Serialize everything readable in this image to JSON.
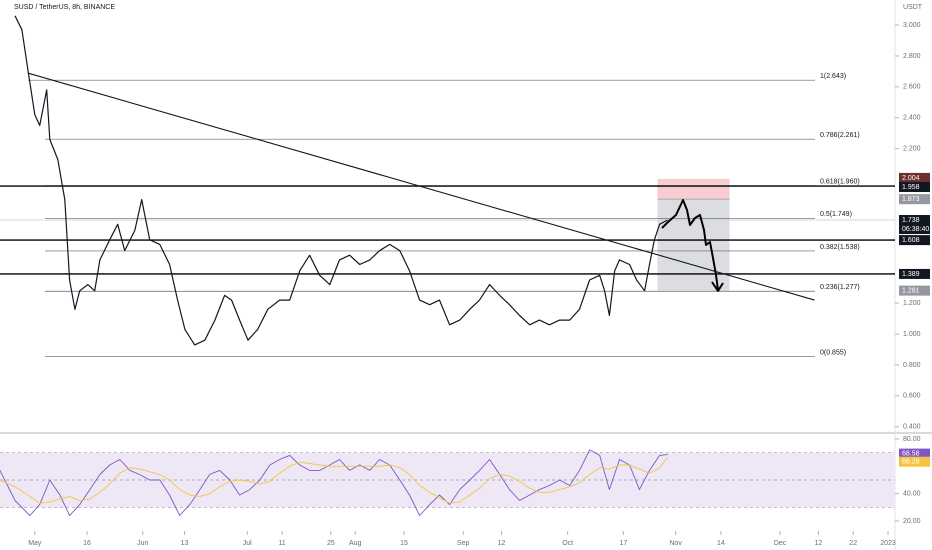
{
  "chart_data": [
    {
      "type": "line",
      "title": "SUSD / TetherUS, 8h, BINANCE",
      "y_unit": "USDT",
      "xlim": [
        -10,
        247
      ],
      "ylim": [
        0.366,
        3.162
      ],
      "xticks": [
        {
          "value": 0,
          "label": "May"
        },
        15,
        {
          "value": 31,
          "label": "Jun"
        },
        43,
        {
          "value": 61,
          "label": "Jul"
        },
        71,
        85,
        {
          "value": 92,
          "label": "Aug"
        },
        106,
        {
          "value": 123,
          "label": "Sep"
        },
        134,
        {
          "value": 153,
          "label": "Oct"
        },
        169,
        {
          "value": 184,
          "label": "Nov"
        },
        197,
        {
          "value": 214,
          "label": "Dec"
        },
        225,
        235,
        245
      ],
      "xtick_labels": [
        "May",
        "16",
        "Jun",
        "13",
        "Jul",
        "11",
        "25",
        "Aug",
        "15",
        "Sep",
        "12",
        "Oct",
        "17",
        "Nov",
        "14",
        "Dec",
        "12",
        "22",
        "2023"
      ],
      "yticks": [
        {
          "value": 3,
          "label": "3.000"
        },
        {
          "value": 2.8,
          "label": "2.800"
        },
        {
          "value": 2.6,
          "label": "2.600"
        },
        {
          "value": 2.4,
          "label": "2.400"
        },
        {
          "value": 2.2,
          "label": "2.200"
        },
        {
          "value": 1.2,
          "label": "1.200"
        },
        {
          "value": 1,
          "label": "1.000"
        },
        {
          "value": 0.8,
          "label": "0.800"
        },
        {
          "value": 0.6,
          "label": "0.600"
        },
        {
          "value": 0.4,
          "label": "0.400"
        }
      ],
      "x": [
        -5.7,
        -3.7,
        -2,
        0,
        1.4,
        3.4,
        4.3,
        6.6,
        8.6,
        10,
        11.5,
        12.9,
        15.2,
        17.2,
        18.7,
        21.5,
        23.8,
        25.8,
        28.7,
        30.7,
        33,
        35.9,
        38.7,
        41,
        43.1,
        45.9,
        48.8,
        51.7,
        54.5,
        56.5,
        58.8,
        61.2,
        64,
        66.9,
        70.3,
        73.2,
        76.1,
        78.9,
        81.8,
        84.7,
        87.5,
        90.4,
        93.3,
        96.2,
        99,
        101.9,
        104.8,
        107.6,
        110.5,
        113.4,
        116.2,
        119.1,
        122,
        124.9,
        127.7,
        130.6,
        133.5,
        136.3,
        139.2,
        142.1,
        144.9,
        147.8,
        150.7,
        153.6,
        156.4,
        159.3,
        162.2,
        163.6,
        165,
        166.5,
        167.9,
        170.8,
        172.8,
        175.1,
        176.5,
        177.9,
        179.4,
        181.7
      ],
      "series": [
        {
          "color": "#131722",
          "values": [
            3.06,
            2.97,
            2.71,
            2.42,
            2.35,
            2.58,
            2.26,
            2.13,
            1.87,
            1.35,
            1.16,
            1.28,
            1.32,
            1.28,
            1.48,
            1.61,
            1.71,
            1.54,
            1.67,
            1.87,
            1.61,
            1.58,
            1.45,
            1.22,
            1.03,
            0.93,
            0.96,
            1.09,
            1.25,
            1.22,
            1.09,
            0.96,
            1.03,
            1.16,
            1.22,
            1.22,
            1.41,
            1.51,
            1.38,
            1.32,
            1.48,
            1.51,
            1.45,
            1.48,
            1.54,
            1.58,
            1.54,
            1.41,
            1.22,
            1.19,
            1.22,
            1.06,
            1.09,
            1.16,
            1.22,
            1.32,
            1.25,
            1.19,
            1.12,
            1.06,
            1.09,
            1.06,
            1.09,
            1.09,
            1.16,
            1.35,
            1.38,
            1.28,
            1.12,
            1.41,
            1.48,
            1.45,
            1.35,
            1.28,
            1.45,
            1.61,
            1.71,
            1.738
          ]
        }
      ],
      "fib_levels": [
        {
          "label": "1(2.643)",
          "value": 2.643
        },
        {
          "label": "0.786(2.261)",
          "value": 2.261
        },
        {
          "label": "0.618(1.960)",
          "value": 1.96
        },
        {
          "label": "0.5(1.749)",
          "value": 1.749
        },
        {
          "label": "0.382(1.538)",
          "value": 1.538
        },
        {
          "label": "0.236(1.277)",
          "value": 1.277
        },
        {
          "label": "0(0.855)",
          "value": 0.855
        }
      ],
      "levels": [
        1.958,
        1.608,
        1.389
      ],
      "trendline": {
        "x": [
          -2,
          223.9
        ],
        "values": [
          2.689,
          1.22
        ]
      },
      "position": {
        "x": [
          178.8,
          199.5
        ],
        "stop": 2.004,
        "entry": 1.873,
        "target": 1.281,
        "stop_color": "#f8cdd1",
        "target_color": "#dcdde0"
      },
      "countdown": "06:38:40"
    },
    {
      "type": "line",
      "xlim": [
        -10,
        247
      ],
      "ylim": [
        13.4,
        82.2
      ],
      "yticks": [
        {
          "value": 80,
          "label": "80.00"
        },
        {
          "value": 40,
          "label": "40.00"
        },
        {
          "value": 20,
          "label": "20.00"
        }
      ],
      "bands": [
        70,
        50,
        30
      ],
      "band_color": "#ede7f6",
      "x": [
        -10,
        -5.7,
        -1.4,
        1.4,
        4.3,
        7.2,
        10,
        12.9,
        15.8,
        18.7,
        21.5,
        24.4,
        27.3,
        30.1,
        33,
        35.9,
        38.7,
        41.6,
        44.5,
        47.4,
        50.2,
        53.1,
        56,
        58.8,
        61.7,
        64.6,
        67.5,
        70.3,
        73.2,
        76.1,
        78.9,
        81.8,
        84.7,
        87.5,
        90.4,
        93.3,
        96.2,
        99,
        101.9,
        104.8,
        107.6,
        110.5,
        113.4,
        116.2,
        119.1,
        122,
        124.9,
        127.7,
        130.6,
        133.5,
        136.3,
        139.2,
        142.1,
        144.9,
        147.8,
        150.7,
        153.6,
        156.4,
        159.3,
        162.2,
        165,
        167.9,
        170.8,
        173.6,
        176.5,
        179.4,
        181.7
      ],
      "series": [
        {
          "color": "#7e57c2",
          "values": [
            57,
            35,
            24,
            32,
            50,
            39,
            24,
            32,
            43,
            54,
            61,
            65,
            57,
            54,
            50,
            50,
            39,
            24,
            32,
            43,
            54,
            57,
            50,
            39,
            43,
            50,
            61,
            65,
            68,
            61,
            57,
            57,
            61,
            65,
            57,
            61,
            57,
            65,
            61,
            50,
            39,
            24,
            32,
            39,
            32,
            43,
            50,
            57,
            65,
            54,
            43,
            35,
            39,
            43,
            46,
            50,
            46,
            57,
            72,
            68,
            43,
            65,
            61,
            43,
            57,
            68,
            68.58
          ]
        },
        {
          "color": "#f5c542",
          "values": [
            50,
            45,
            38,
            33,
            34,
            36,
            38,
            35,
            36,
            41,
            47,
            55,
            59,
            58,
            56,
            54,
            50,
            43,
            39,
            38,
            40,
            45,
            49,
            50,
            49,
            47,
            49,
            55,
            60,
            63,
            62,
            61,
            60,
            60,
            60,
            60,
            60,
            60,
            61,
            59,
            54,
            46,
            41,
            37,
            33,
            34,
            39,
            44,
            51,
            54,
            53,
            49,
            44,
            41,
            41,
            43,
            45,
            48,
            54,
            59,
            58,
            61,
            61,
            58,
            55,
            59,
            66.29
          ]
        }
      ]
    }
  ]
}
